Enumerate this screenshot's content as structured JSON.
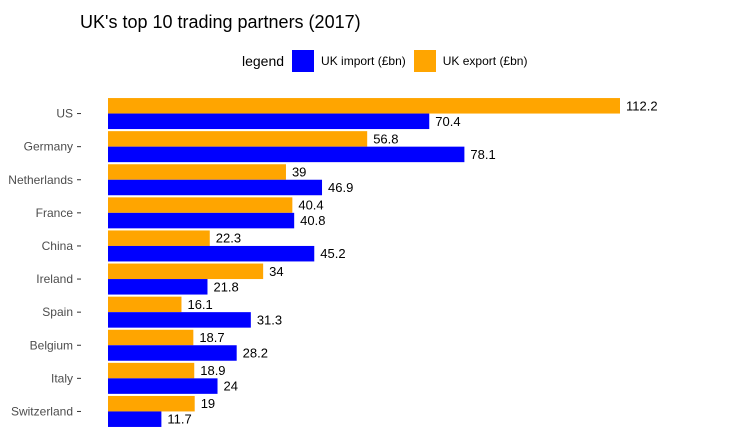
{
  "chart_data": {
    "type": "bar",
    "orientation": "horizontal",
    "title": "UK's top 10 trading partners (2017)",
    "legend": {
      "title": "legend",
      "placement": "top"
    },
    "categories": [
      "US",
      "Germany",
      "Netherlands",
      "France",
      "China",
      "Ireland",
      "Spain",
      "Belgium",
      "Italy",
      "Switzerland"
    ],
    "series": [
      {
        "name": "UK import (£bn)",
        "color": "#0000ff",
        "values": [
          70.4,
          78.1,
          46.9,
          40.8,
          45.2,
          21.8,
          31.3,
          28.2,
          24,
          11.7
        ]
      },
      {
        "name": "UK export (£bn)",
        "color": "#ffa500",
        "values": [
          112.2,
          56.8,
          39,
          40.4,
          22.3,
          34,
          16.1,
          18.7,
          18.9,
          19
        ]
      }
    ],
    "xlim": [
      0,
      112.2
    ],
    "grid": false
  }
}
